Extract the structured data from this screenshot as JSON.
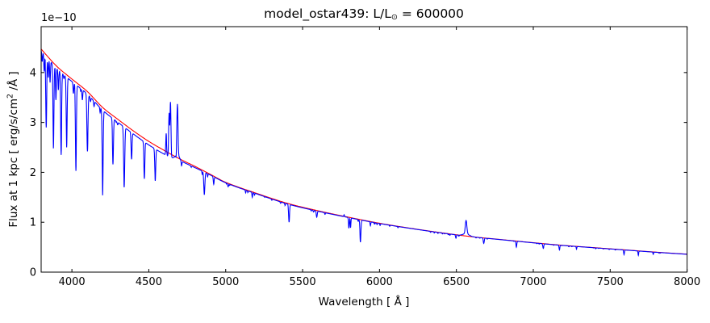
{
  "figure": {
    "background": "#ffffff",
    "frame_color": "#000000"
  },
  "chart_data": {
    "type": "line",
    "title": {
      "prefix": "model_ostar439: L/L",
      "sub": "⊙",
      "suffix": " = 600000"
    },
    "axes": {
      "xlabel": "Wavelength [ Å ]",
      "ylabel_prefix": "Flux at 1 kpc [ erg/s/cm",
      "ylabel_sup": "2",
      "ylabel_suffix": " /Å ]",
      "y_offset_text": "1e−10",
      "xlim": [
        3800,
        8000
      ],
      "ylim": [
        0,
        4.92
      ],
      "xticks": [
        4000,
        4500,
        5000,
        5500,
        6000,
        6500,
        7000,
        7500,
        8000
      ],
      "yticks": [
        0,
        1,
        2,
        3,
        4
      ],
      "grid": false,
      "legend": null
    },
    "series": [
      {
        "name": "continuum_model",
        "color": "#ff0000",
        "role": "continuum",
        "points": [
          [
            3800,
            4.47
          ],
          [
            3900,
            4.13
          ],
          [
            4000,
            3.87
          ],
          [
            4100,
            3.62
          ],
          [
            4200,
            3.3
          ],
          [
            4300,
            3.06
          ],
          [
            4400,
            2.83
          ],
          [
            4500,
            2.62
          ],
          [
            4600,
            2.44
          ],
          [
            4700,
            2.27
          ],
          [
            4800,
            2.12
          ],
          [
            4900,
            1.96
          ],
          [
            5000,
            1.8
          ],
          [
            5200,
            1.58
          ],
          [
            5400,
            1.38
          ],
          [
            5600,
            1.23
          ],
          [
            5800,
            1.1
          ],
          [
            6000,
            0.98
          ],
          [
            6200,
            0.88
          ],
          [
            6400,
            0.79
          ],
          [
            6600,
            0.71
          ],
          [
            6800,
            0.65
          ],
          [
            7000,
            0.59
          ],
          [
            7200,
            0.535
          ],
          [
            7400,
            0.49
          ],
          [
            7600,
            0.445
          ],
          [
            7800,
            0.4
          ],
          [
            8000,
            0.36
          ]
        ]
      },
      {
        "name": "synthetic_spectrum",
        "color": "#0000ff",
        "role": "spectrum",
        "continuum_depression": [
          [
            3800,
            0.006
          ],
          [
            3950,
            0.012
          ],
          [
            4100,
            0.014
          ],
          [
            4250,
            0.018
          ],
          [
            4400,
            0.022
          ],
          [
            4520,
            0.028
          ],
          [
            4620,
            0.03
          ],
          [
            4700,
            0.015
          ],
          [
            4800,
            0.012
          ],
          [
            4900,
            0.007
          ],
          [
            5000,
            0.005
          ],
          [
            5250,
            0.007
          ],
          [
            5450,
            0.009
          ],
          [
            5700,
            0.007
          ],
          [
            5950,
            0.006
          ],
          [
            6200,
            0.004
          ],
          [
            6450,
            0.003
          ],
          [
            6563,
            0.0
          ],
          [
            6700,
            0.003
          ],
          [
            7000,
            0.005
          ],
          [
            7300,
            0.005
          ],
          [
            7600,
            0.006
          ],
          [
            8000,
            0.007
          ]
        ],
        "absorption_lines": [
          [
            3807,
            4.22,
            2.5
          ],
          [
            3820,
            4.02,
            2.5
          ],
          [
            3833,
            2.9,
            3
          ],
          [
            3846,
            3.9,
            2.5
          ],
          [
            3858,
            3.8,
            2.5
          ],
          [
            3880,
            2.48,
            3
          ],
          [
            3896,
            3.45,
            2.5
          ],
          [
            3912,
            3.65,
            2.5
          ],
          [
            3930,
            2.35,
            3
          ],
          [
            3948,
            3.88,
            2.5
          ],
          [
            3966,
            2.5,
            3
          ],
          [
            4010,
            3.58,
            2.5
          ],
          [
            4026,
            2.03,
            3
          ],
          [
            4068,
            3.45,
            2.5
          ],
          [
            4101,
            2.42,
            3.5
          ],
          [
            4121,
            3.42,
            2.5
          ],
          [
            4144,
            3.32,
            2.5
          ],
          [
            4200,
            1.54,
            3
          ],
          [
            4267,
            2.16,
            3
          ],
          [
            4340,
            1.7,
            3.5
          ],
          [
            4388,
            2.26,
            3
          ],
          [
            4437,
            2.72,
            2.5
          ],
          [
            4471,
            1.87,
            3
          ],
          [
            4542,
            1.83,
            3
          ],
          [
            4713,
            2.12,
            2.5
          ],
          [
            4861,
            1.55,
            3.5
          ],
          [
            4922,
            1.76,
            2.5
          ],
          [
            5016,
            1.71,
            2.5
          ],
          [
            5048,
            1.76,
            2
          ],
          [
            5173,
            1.5,
            2
          ],
          [
            5300,
            1.44,
            2
          ],
          [
            5412,
            1.0,
            3
          ],
          [
            5592,
            1.1,
            3
          ],
          [
            5696,
            1.16,
            2
          ],
          [
            5801,
            0.88,
            2.5
          ],
          [
            5812,
            0.89,
            2
          ],
          [
            5876,
            0.6,
            3
          ],
          [
            5941,
            0.93,
            2
          ],
          [
            6004,
            0.935,
            2
          ],
          [
            6120,
            0.89,
            2
          ],
          [
            6380,
            0.775,
            2
          ],
          [
            6497,
            0.68,
            2.5
          ],
          [
            6678,
            0.575,
            3
          ],
          [
            6890,
            0.5,
            2.5
          ],
          [
            7065,
            0.475,
            3
          ],
          [
            7170,
            0.445,
            2.5
          ],
          [
            7281,
            0.46,
            2
          ],
          [
            7590,
            0.35,
            2.5
          ],
          [
            7683,
            0.335,
            2
          ],
          [
            7780,
            0.355,
            2
          ]
        ],
        "emission_lines": [
          {
            "wl": 4613,
            "peak": 2.78,
            "sigma": 2.5
          },
          {
            "wl": 4632,
            "peak": 3.18,
            "sigma": 3
          },
          {
            "wl": 4641,
            "peak": 3.4,
            "sigma": 3
          },
          {
            "wl": 4686,
            "peak": 3.27,
            "sigma": 3.5,
            "wing_amp": 0.1,
            "wing_sigma": 13
          },
          {
            "wl": 5770,
            "peak": 1.15,
            "sigma": 2
          },
          {
            "wl": 6563,
            "peak": 0.99,
            "sigma": 5,
            "wing_amp": 0.045,
            "wing_sigma": 20
          }
        ],
        "noise": {
          "count": 60,
          "seed": 439,
          "depth_min": 0.008,
          "depth_max": 0.035,
          "sigma_min": 1.5,
          "sigma_max": 2.5,
          "range": [
            3850,
            7950
          ]
        }
      }
    ]
  }
}
